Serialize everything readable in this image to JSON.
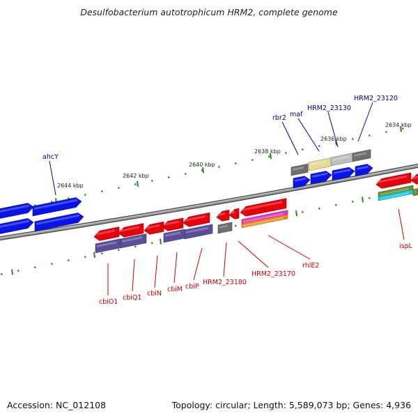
{
  "title": "Desulfobacterium autotrophicum HRM2, complete genome",
  "accession": "Accession: NC_012108",
  "summary": "Topology: circular; Length: 5,589,073 bp; Genes: 4,936",
  "scale_labels": [
    "2644 kbp",
    "2642 kbp",
    "2640 kbp",
    "2638 kbp",
    "2636 kbp",
    "2634 kbp"
  ],
  "gene_labels": {
    "forward": [
      "ahcY",
      "rbr2",
      "maf",
      "HRM2_23130",
      "HRM2_23120"
    ],
    "reverse": [
      "cbiO1",
      "cbiQ1",
      "cbiN",
      "cbiM",
      "cbiP",
      "HRM2_23180",
      "HRM2_23170",
      "rhlE2",
      "ispL"
    ]
  },
  "colors": {
    "forward_cds": "#0a14e6",
    "reverse_cds": "#e6000a",
    "forward_label": "#00008b",
    "reverse_label": "#cc0000",
    "cog_purple": "#5a4d9a",
    "cog_gray": "#6e6e6e",
    "cog_khaki": "#e6dc96",
    "cog_silver": "#bebebe",
    "cog_magenta": "#e633c8",
    "cog_orange": "#f08c1e",
    "cog_olive": "#6e8c28",
    "cog_cyan": "#14c8dc",
    "tick_green": "#1e8c1e",
    "backbone": "#808080"
  }
}
